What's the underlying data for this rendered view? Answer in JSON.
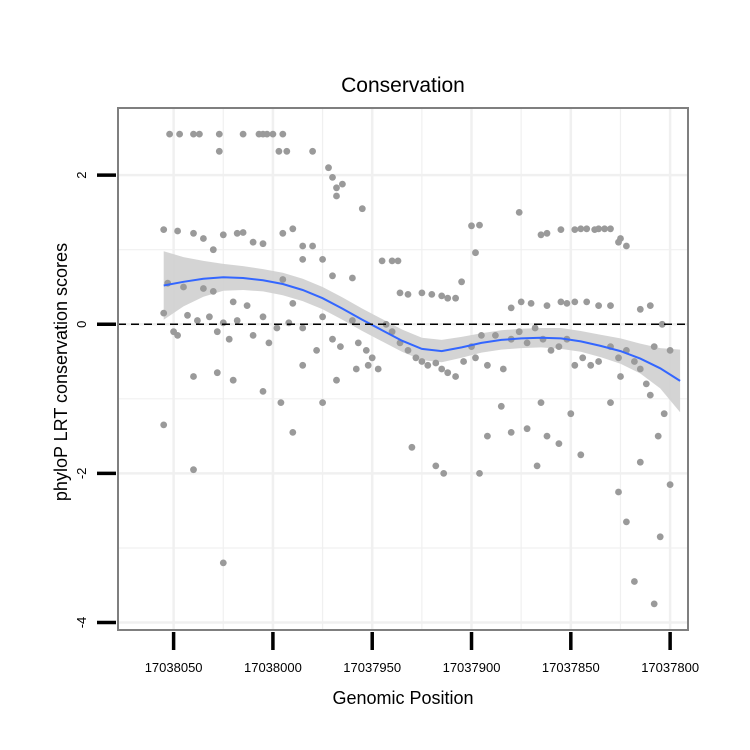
{
  "chart_data": {
    "type": "scatter",
    "title": "Conservation",
    "xlabel": "Genomic Position",
    "ylabel": "phyloP LRT conservation scores",
    "x_reversed": true,
    "xlim": [
      17038078,
      17037791
    ],
    "ylim": [
      -4.1,
      2.9
    ],
    "x_ticks": [
      17038050,
      17038000,
      17037950,
      17037900,
      17037850,
      17037800
    ],
    "x_tick_labels": [
      "17038050",
      "17038000",
      "17037950",
      "17037900",
      "17037850",
      "17037800"
    ],
    "y_ticks": [
      2,
      0,
      -2,
      -4
    ],
    "y_tick_labels": [
      "2",
      "0",
      "-2",
      "-4"
    ],
    "reference_line": {
      "y": 0,
      "style": "dashed"
    },
    "grid": true,
    "point_color": "#9a9a9a",
    "smooth_color": "#3366ff",
    "band_color": "#cfcfcf",
    "series": [
      {
        "name": "phyloP scores",
        "points": [
          [
            17038052,
            2.55
          ],
          [
            17038047,
            2.55
          ],
          [
            17038040,
            2.55
          ],
          [
            17038037,
            2.55
          ],
          [
            17038027,
            2.55
          ],
          [
            17038015,
            2.55
          ],
          [
            17038007,
            2.55
          ],
          [
            17038005,
            2.55
          ],
          [
            17038003,
            2.55
          ],
          [
            17038000,
            2.55
          ],
          [
            17037995,
            2.55
          ],
          [
            17038027,
            2.32
          ],
          [
            17037997,
            2.32
          ],
          [
            17037993,
            2.32
          ],
          [
            17037980,
            2.32
          ],
          [
            17037972,
            2.1
          ],
          [
            17037970,
            1.97
          ],
          [
            17037968,
            1.83
          ],
          [
            17037965,
            1.88
          ],
          [
            17037968,
            1.72
          ],
          [
            17037955,
            1.55
          ],
          [
            17038055,
            1.27
          ],
          [
            17038048,
            1.25
          ],
          [
            17038040,
            1.22
          ],
          [
            17038035,
            1.15
          ],
          [
            17038025,
            1.2
          ],
          [
            17038018,
            1.22
          ],
          [
            17038015,
            1.23
          ],
          [
            17037995,
            1.22
          ],
          [
            17037990,
            1.28
          ],
          [
            17037985,
            1.05
          ],
          [
            17037980,
            1.05
          ],
          [
            17038030,
            1.0
          ],
          [
            17038010,
            1.1
          ],
          [
            17038005,
            1.08
          ],
          [
            17037985,
            0.87
          ],
          [
            17037975,
            0.87
          ],
          [
            17037945,
            0.85
          ],
          [
            17037940,
            0.85
          ],
          [
            17037937,
            0.85
          ],
          [
            17037900,
            1.32
          ],
          [
            17037896,
            1.33
          ],
          [
            17037876,
            1.5
          ],
          [
            17037865,
            1.2
          ],
          [
            17037862,
            1.22
          ],
          [
            17037855,
            1.27
          ],
          [
            17037848,
            1.27
          ],
          [
            17037845,
            1.28
          ],
          [
            17037842,
            1.28
          ],
          [
            17037838,
            1.27
          ],
          [
            17037836,
            1.28
          ],
          [
            17037833,
            1.28
          ],
          [
            17037830,
            1.28
          ],
          [
            17037826,
            1.1
          ],
          [
            17037825,
            1.15
          ],
          [
            17037822,
            1.05
          ],
          [
            17038053,
            0.55
          ],
          [
            17038045,
            0.5
          ],
          [
            17038035,
            0.48
          ],
          [
            17038030,
            0.44
          ],
          [
            17038020,
            0.3
          ],
          [
            17038013,
            0.25
          ],
          [
            17037995,
            0.6
          ],
          [
            17037990,
            0.28
          ],
          [
            17037970,
            0.65
          ],
          [
            17037960,
            0.62
          ],
          [
            17037936,
            0.42
          ],
          [
            17037932,
            0.4
          ],
          [
            17037925,
            0.42
          ],
          [
            17037920,
            0.4
          ],
          [
            17037915,
            0.38
          ],
          [
            17037912,
            0.35
          ],
          [
            17037908,
            0.35
          ],
          [
            17037905,
            0.57
          ],
          [
            17037898,
            0.96
          ],
          [
            17037880,
            0.22
          ],
          [
            17037875,
            0.3
          ],
          [
            17037870,
            0.28
          ],
          [
            17037862,
            0.25
          ],
          [
            17037855,
            0.3
          ],
          [
            17037852,
            0.28
          ],
          [
            17037848,
            0.3
          ],
          [
            17037842,
            0.3
          ],
          [
            17037836,
            0.25
          ],
          [
            17037830,
            0.25
          ],
          [
            17037810,
            0.25
          ],
          [
            17037815,
            0.2
          ],
          [
            17038055,
            0.15
          ],
          [
            17038050,
            -0.1
          ],
          [
            17038048,
            -0.15
          ],
          [
            17038043,
            0.12
          ],
          [
            17038038,
            0.05
          ],
          [
            17038032,
            0.1
          ],
          [
            17038028,
            -0.1
          ],
          [
            17038025,
            0.02
          ],
          [
            17038022,
            -0.2
          ],
          [
            17038018,
            0.05
          ],
          [
            17038010,
            -0.15
          ],
          [
            17038005,
            0.1
          ],
          [
            17038002,
            -0.25
          ],
          [
            17037998,
            -0.05
          ],
          [
            17037992,
            0.02
          ],
          [
            17037985,
            -0.05
          ],
          [
            17037978,
            -0.35
          ],
          [
            17037975,
            0.1
          ],
          [
            17037970,
            -0.2
          ],
          [
            17037966,
            -0.3
          ],
          [
            17037960,
            0.05
          ],
          [
            17037957,
            -0.25
          ],
          [
            17037953,
            -0.35
          ],
          [
            17037950,
            -0.45
          ],
          [
            17037947,
            -0.6
          ],
          [
            17037943,
            0.0
          ],
          [
            17037940,
            -0.1
          ],
          [
            17037936,
            -0.25
          ],
          [
            17037932,
            -0.35
          ],
          [
            17037928,
            -0.45
          ],
          [
            17037925,
            -0.5
          ],
          [
            17037922,
            -0.55
          ],
          [
            17037918,
            -0.52
          ],
          [
            17037915,
            -0.6
          ],
          [
            17037912,
            -0.65
          ],
          [
            17037908,
            -0.7
          ],
          [
            17037904,
            -0.5
          ],
          [
            17037900,
            -0.3
          ],
          [
            17037898,
            -0.45
          ],
          [
            17037895,
            -0.15
          ],
          [
            17037892,
            -0.55
          ],
          [
            17037888,
            -0.15
          ],
          [
            17037884,
            -0.6
          ],
          [
            17037880,
            -0.2
          ],
          [
            17037876,
            -0.1
          ],
          [
            17037872,
            -0.25
          ],
          [
            17037868,
            -0.05
          ],
          [
            17037864,
            -0.2
          ],
          [
            17037860,
            -0.35
          ],
          [
            17037856,
            -0.3
          ],
          [
            17037852,
            -0.2
          ],
          [
            17037848,
            -0.55
          ],
          [
            17037844,
            -0.45
          ],
          [
            17037840,
            -0.55
          ],
          [
            17037836,
            -0.5
          ],
          [
            17037830,
            -0.3
          ],
          [
            17037826,
            -0.45
          ],
          [
            17037822,
            -0.35
          ],
          [
            17037818,
            -0.5
          ],
          [
            17037815,
            -0.6
          ],
          [
            17037812,
            -0.8
          ],
          [
            17037808,
            -0.3
          ],
          [
            17037804,
            0.0
          ],
          [
            17037800,
            -0.35
          ],
          [
            17038055,
            -1.35
          ],
          [
            17038040,
            -0.7
          ],
          [
            17038028,
            -0.65
          ],
          [
            17038020,
            -0.75
          ],
          [
            17038005,
            -0.9
          ],
          [
            17037996,
            -1.05
          ],
          [
            17037985,
            -0.55
          ],
          [
            17037975,
            -1.05
          ],
          [
            17037968,
            -0.75
          ],
          [
            17037958,
            -0.6
          ],
          [
            17037952,
            -0.55
          ],
          [
            17037930,
            -1.65
          ],
          [
            17037918,
            -1.9
          ],
          [
            17037914,
            -2.0
          ],
          [
            17037896,
            -2.0
          ],
          [
            17037892,
            -1.5
          ],
          [
            17037885,
            -1.1
          ],
          [
            17037880,
            -1.45
          ],
          [
            17037872,
            -1.4
          ],
          [
            17037865,
            -1.05
          ],
          [
            17037862,
            -1.5
          ],
          [
            17037856,
            -1.6
          ],
          [
            17037850,
            -1.2
          ],
          [
            17037830,
            -1.05
          ],
          [
            17037825,
            -0.7
          ],
          [
            17037810,
            -0.95
          ],
          [
            17037806,
            -1.5
          ],
          [
            17037803,
            -1.2
          ],
          [
            17038040,
            -1.95
          ],
          [
            17037990,
            -1.45
          ],
          [
            17037867,
            -1.9
          ],
          [
            17037845,
            -1.75
          ],
          [
            17037826,
            -2.25
          ],
          [
            17037822,
            -2.65
          ],
          [
            17037805,
            -2.85
          ],
          [
            17037800,
            -2.15
          ],
          [
            17037818,
            -3.45
          ],
          [
            17037815,
            -1.85
          ],
          [
            17038025,
            -3.2
          ],
          [
            17037808,
            -3.75
          ]
        ]
      }
    ],
    "smooth_curve": {
      "x": [
        17038055,
        17038045,
        17038035,
        17038025,
        17038015,
        17038005,
        17037995,
        17037985,
        17037975,
        17037965,
        17037955,
        17037945,
        17037935,
        17037925,
        17037915,
        17037905,
        17037895,
        17037885,
        17037875,
        17037865,
        17037855,
        17037845,
        17037835,
        17037825,
        17037815,
        17037805,
        17037795
      ],
      "y": [
        0.52,
        0.57,
        0.61,
        0.63,
        0.62,
        0.59,
        0.54,
        0.46,
        0.35,
        0.21,
        0.06,
        -0.08,
        -0.22,
        -0.33,
        -0.36,
        -0.31,
        -0.25,
        -0.21,
        -0.19,
        -0.18,
        -0.19,
        -0.23,
        -0.29,
        -0.36,
        -0.46,
        -0.59,
        -0.76
      ],
      "ci_half_width": [
        0.46,
        0.33,
        0.24,
        0.18,
        0.16,
        0.15,
        0.15,
        0.15,
        0.15,
        0.15,
        0.15,
        0.15,
        0.15,
        0.15,
        0.15,
        0.14,
        0.13,
        0.13,
        0.13,
        0.13,
        0.14,
        0.14,
        0.15,
        0.17,
        0.2,
        0.27,
        0.42
      ]
    }
  }
}
